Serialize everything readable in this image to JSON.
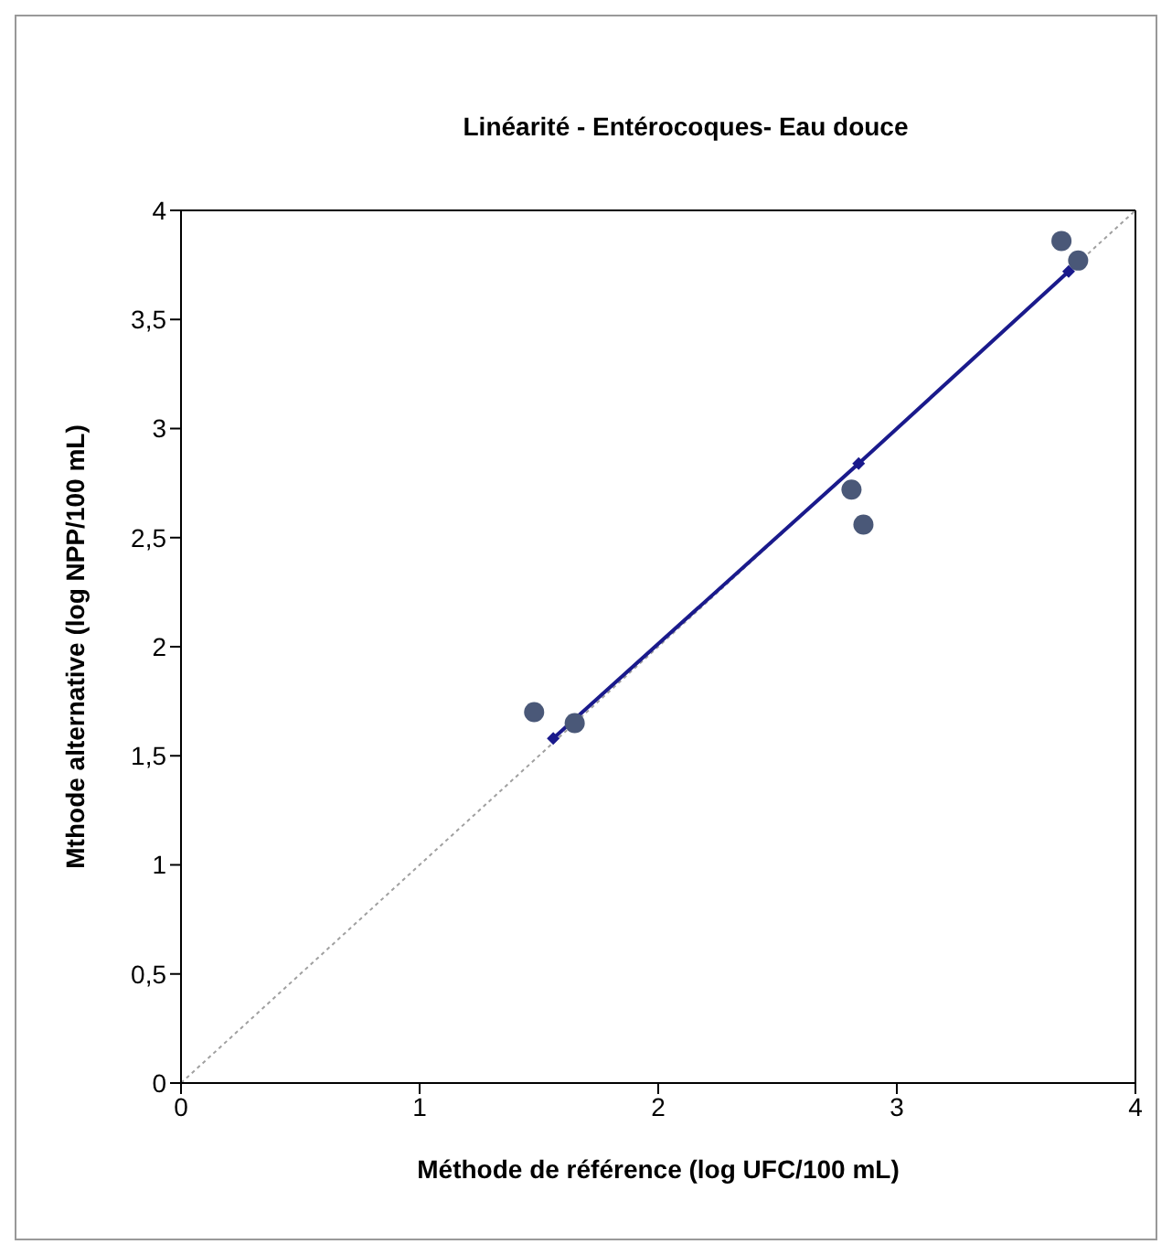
{
  "chart_data": {
    "type": "scatter",
    "title": "Linéarité - Entérocoques- Eau douce",
    "xlabel": "Méthode de référence (log UFC/100 mL)",
    "ylabel": "Mthode alternative (log NPP/100 mL)",
    "xlim": [
      0,
      4
    ],
    "ylim": [
      0,
      4
    ],
    "xticks": [
      0,
      1,
      2,
      3,
      4
    ],
    "yticks": [
      0,
      {
        "value": 0.5,
        "label": "0,5"
      },
      1,
      {
        "value": 1.5,
        "label": "1,5"
      },
      2,
      {
        "value": 2.5,
        "label": "2,5"
      },
      3,
      {
        "value": 3.5,
        "label": "3,5"
      },
      4
    ],
    "grid": false,
    "legend": false,
    "series": [
      {
        "type": "line",
        "color": "#a0a0a0",
        "line_style": "dotted",
        "marker": "none",
        "x": [
          0,
          4
        ],
        "values": [
          0,
          4
        ]
      },
      {
        "type": "line",
        "color": "#1a1a8c",
        "line_style": "solid",
        "marker": "diamond",
        "x": [
          1.56,
          2.84,
          3.72
        ],
        "values": [
          1.58,
          2.84,
          3.72
        ]
      },
      {
        "type": "scatter",
        "color": "#4a5878",
        "marker": "circle",
        "x": [
          1.48,
          1.65,
          2.81,
          2.86,
          3.69,
          3.76
        ],
        "values": [
          1.7,
          1.65,
          2.72,
          2.56,
          3.86,
          3.77
        ]
      }
    ]
  }
}
